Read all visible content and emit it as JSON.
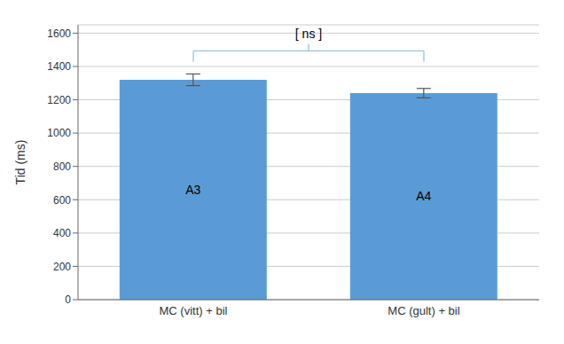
{
  "chart_data": {
    "type": "bar",
    "categories": [
      "MC (vitt) + bil",
      "MC (gult) + bil"
    ],
    "values": [
      1320,
      1240
    ],
    "errors": [
      35,
      28
    ],
    "color": "#5B9BD5",
    "ylabel": "Tid (ms)",
    "ylim": [
      0,
      1650
    ],
    "yticks": [
      0,
      200,
      400,
      600,
      800,
      1000,
      1200,
      1400,
      1600
    ],
    "grid": true,
    "annotations": [
      {
        "text": "A3",
        "category": "MC (vitt) + bil"
      },
      {
        "text": "A4",
        "category": "MC (gult) + bil"
      },
      {
        "text": "[ ns ]",
        "categories": [
          "MC (vitt) + bil",
          "MC (gult) + bil"
        ],
        "color": "#92C5DE"
      }
    ]
  }
}
